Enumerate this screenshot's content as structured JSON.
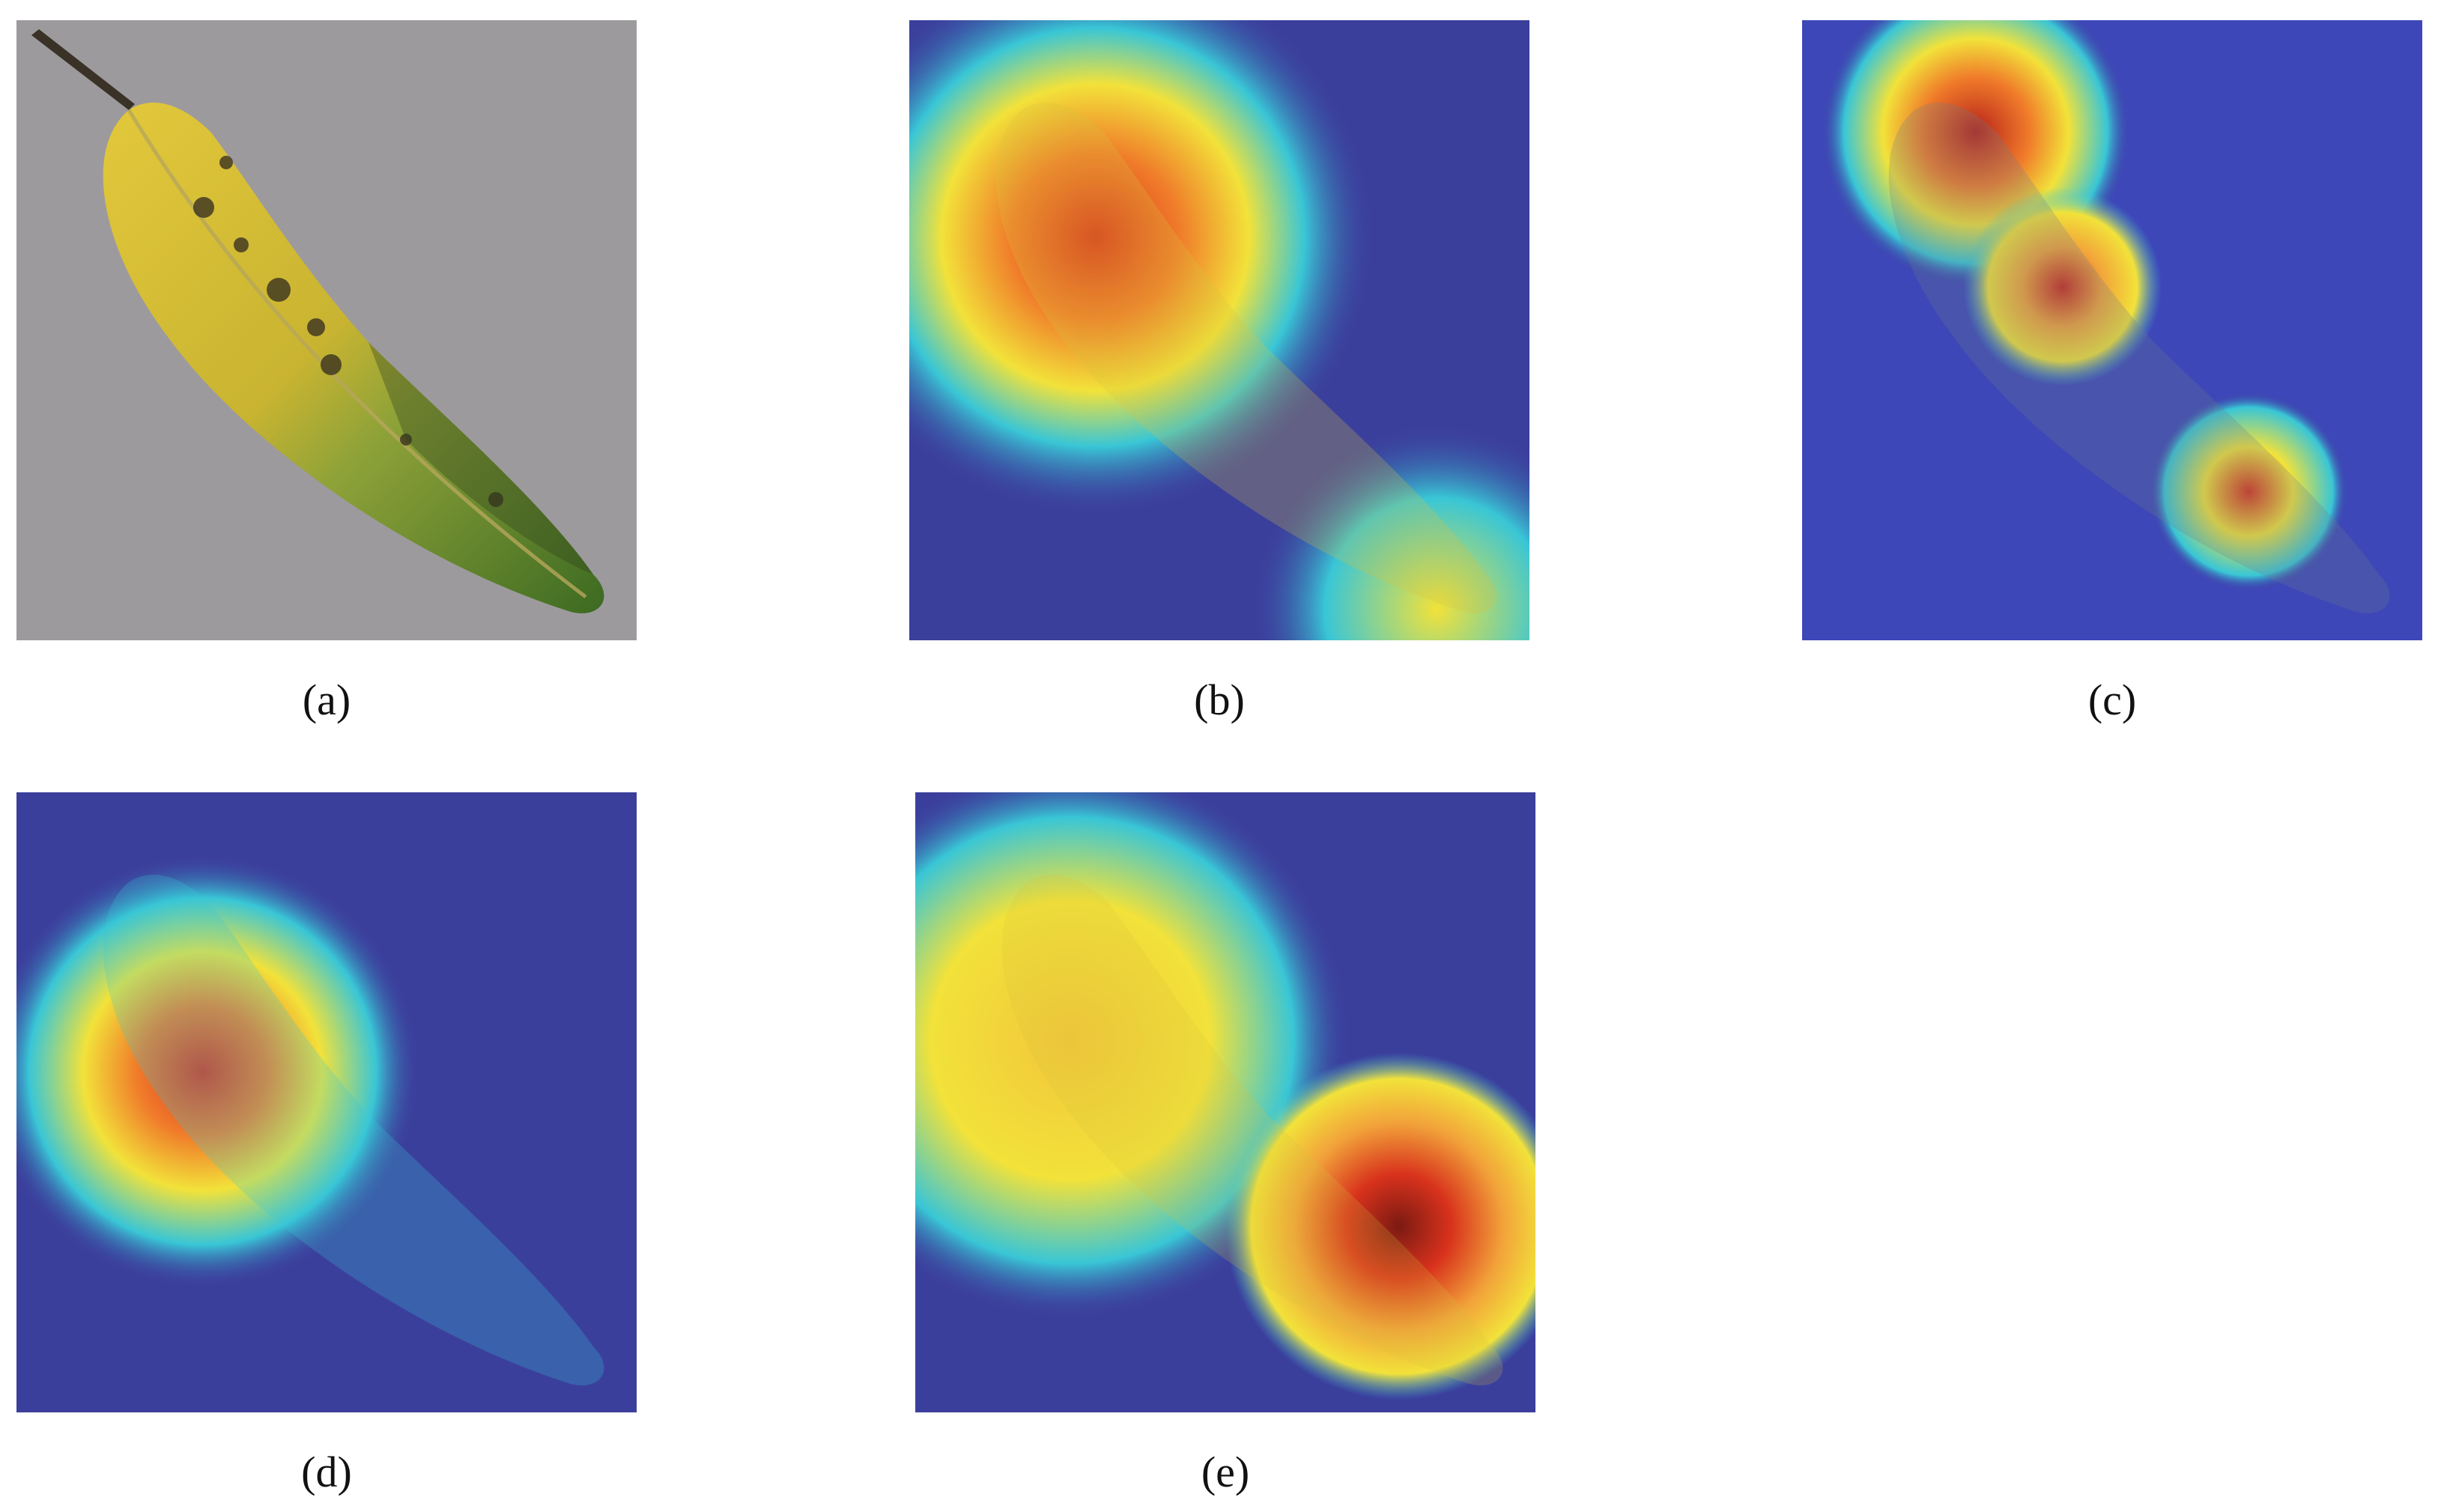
{
  "panels": [
    {
      "id": "a",
      "caption": "(a)",
      "kind": "original-leaf-photo"
    },
    {
      "id": "b",
      "caption": "(b)",
      "kind": "heatmap-overlay"
    },
    {
      "id": "c",
      "caption": "(c)",
      "kind": "heatmap-overlay"
    },
    {
      "id": "d",
      "caption": "(d)",
      "kind": "heatmap-overlay"
    },
    {
      "id": "e",
      "caption": "(e)",
      "kind": "heatmap-overlay"
    }
  ],
  "colors": {
    "background_gray": "#9d9a9d",
    "heatmap_low": "#3b3f9c",
    "heatmap_mid_cyan": "#39c6d6",
    "heatmap_mid_yellow": "#f2e23a",
    "heatmap_high": "#d63a1d",
    "leaf_yellow": "#d8c23a",
    "leaf_green": "#5f8a2e"
  }
}
